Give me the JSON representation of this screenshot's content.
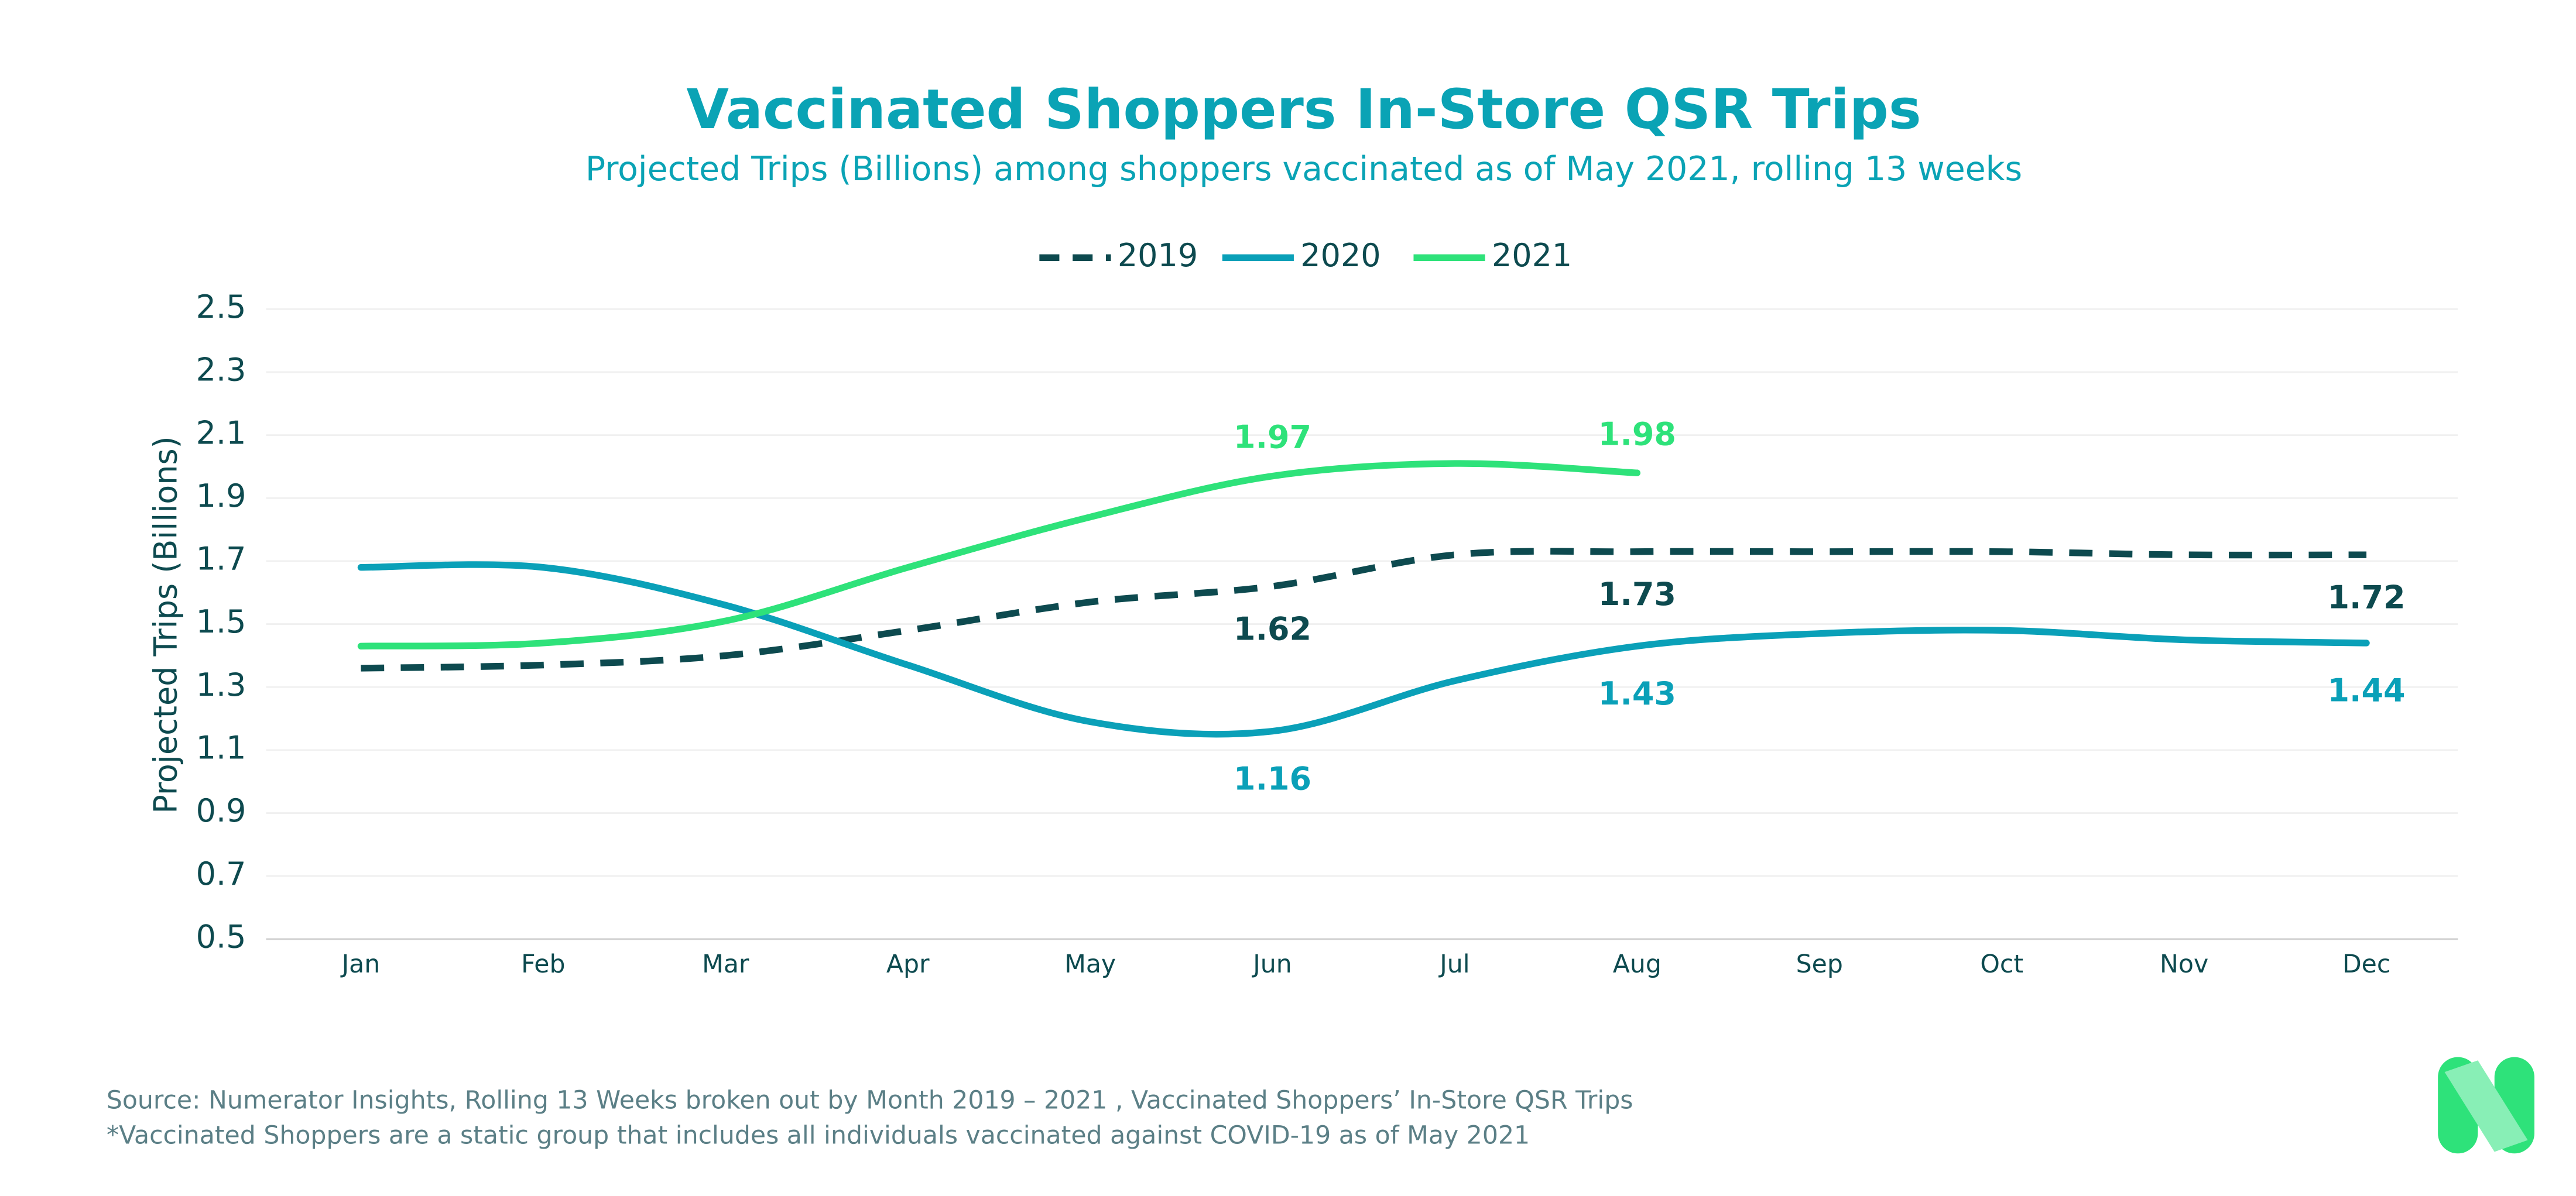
{
  "chart_data": {
    "type": "line",
    "title": "Vaccinated Shoppers In-Store QSR Trips",
    "subtitle": "Projected Trips (Billions) among shoppers vaccinated as of May 2021, rolling 13 weeks",
    "y_label": "Projected Trips (Billions)",
    "categories": [
      "Jan",
      "Feb",
      "Mar",
      "Apr",
      "May",
      "Jun",
      "Jul",
      "Aug",
      "Sep",
      "Oct",
      "Nov",
      "Dec"
    ],
    "series": [
      {
        "name": "2019",
        "color": "#0d4a4f",
        "dashed": true,
        "values": [
          1.36,
          1.37,
          1.4,
          1.48,
          1.57,
          1.62,
          1.72,
          1.73,
          1.73,
          1.73,
          1.72,
          1.72
        ],
        "value_labels": [
          null,
          null,
          null,
          null,
          null,
          "1.62",
          null,
          "1.73",
          null,
          null,
          null,
          "1.72"
        ]
      },
      {
        "name": "2020",
        "color": "#0aa0b8",
        "values": [
          1.68,
          1.68,
          1.56,
          1.37,
          1.19,
          1.16,
          1.32,
          1.43,
          1.47,
          1.48,
          1.45,
          1.44
        ],
        "value_labels": [
          null,
          null,
          null,
          null,
          null,
          "1.16",
          null,
          "1.43",
          null,
          null,
          null,
          "1.44"
        ]
      },
      {
        "name": "2021",
        "color": "#2ee27a",
        "values": [
          1.43,
          1.44,
          1.51,
          1.68,
          1.84,
          1.97,
          2.01,
          1.98,
          null,
          null,
          null,
          null
        ],
        "value_labels": [
          null,
          null,
          null,
          null,
          null,
          "1.97",
          null,
          "1.98",
          null,
          null,
          null,
          null
        ]
      }
    ],
    "ylim": [
      0.5,
      2.5
    ],
    "yticks": [
      0.5,
      0.7,
      0.9,
      1.1,
      1.3,
      1.5,
      1.7,
      1.9,
      2.1,
      2.3,
      2.5
    ],
    "grid": true,
    "legend": "top",
    "notes": [
      "Source: Numerator Insights, Rolling 13 Weeks broken out by Month 2019 – 2021 , Vaccinated Shoppers’ In-Store QSR Trips",
      "*Vaccinated Shoppers are a static group that includes all individuals vaccinated against COVID-19 as of May 2021"
    ]
  }
}
